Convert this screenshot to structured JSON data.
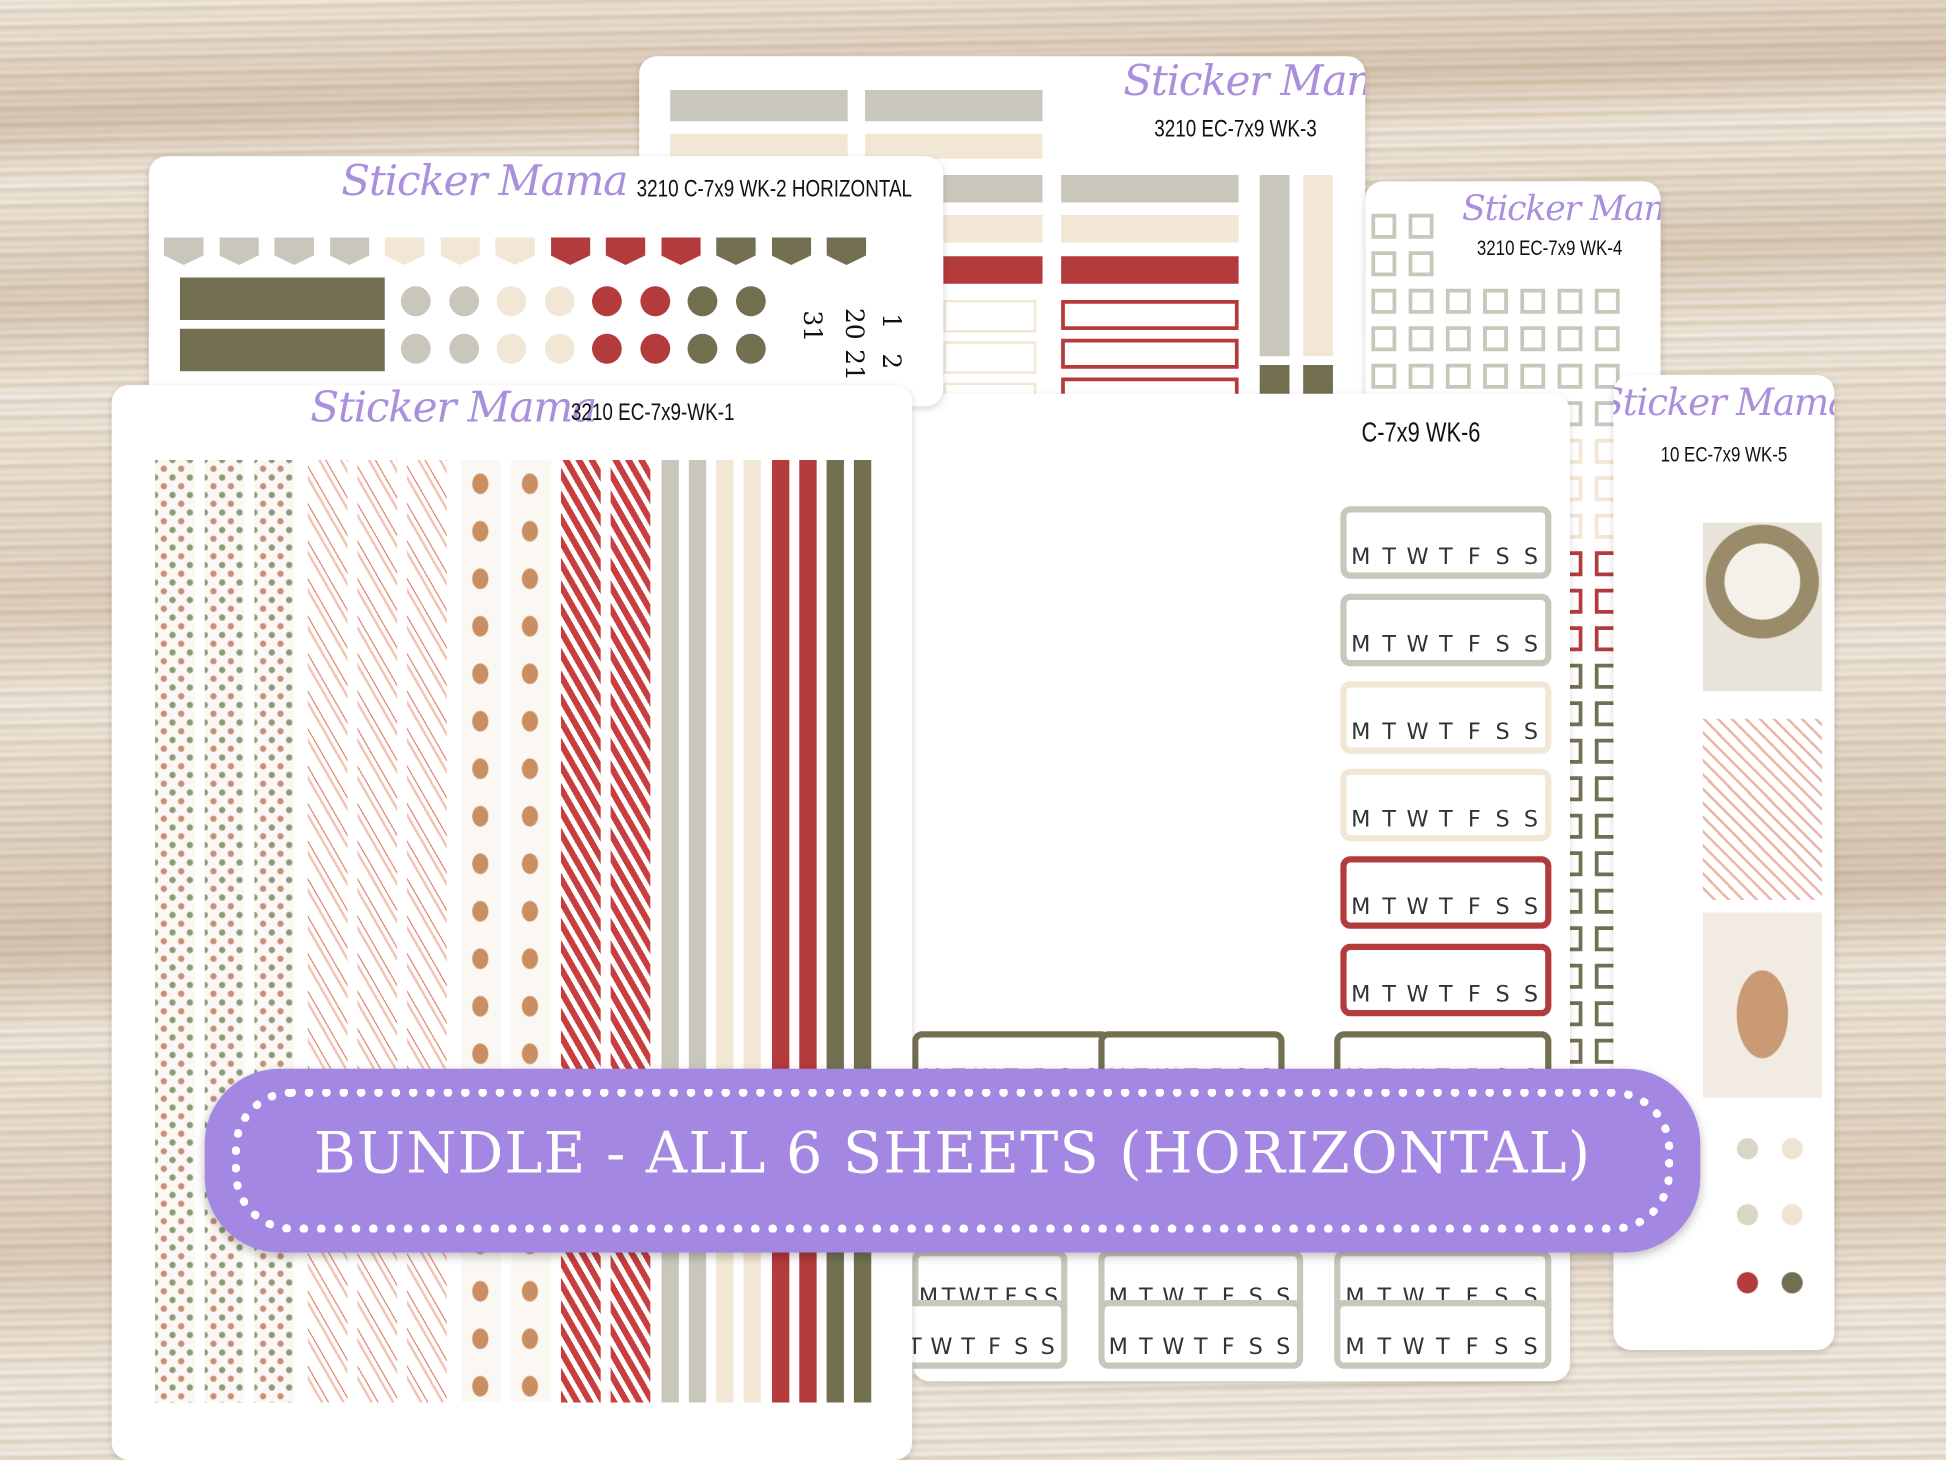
{
  "brand": "Sticker Mama",
  "sheets": {
    "wk1": {
      "code": "3210 EC-7x9-WK-1"
    },
    "wk2": {
      "code": "3210 C-7x9 WK-2 HORIZONTAL",
      "numbers": [
        "1",
        "2",
        "20",
        "21",
        "31"
      ]
    },
    "wk3": {
      "code": "3210 EC-7x9 WK-3"
    },
    "wk4": {
      "code": "3210 EC-7x9 WK-4"
    },
    "wk5": {
      "code": "10 EC-7x9 WK-5"
    },
    "wk6": {
      "code": "C-7x9 WK-6",
      "weekdays": "MTWTFSS"
    }
  },
  "banner": {
    "text": "BUNDLE - ALL 6 SHEETS (HORIZONTAL)"
  },
  "palette": {
    "gray": "#c9c7bb",
    "cream": "#f2e7d5",
    "red": "#b43b3b",
    "olive": "#737052",
    "purple": "#a387e2"
  }
}
